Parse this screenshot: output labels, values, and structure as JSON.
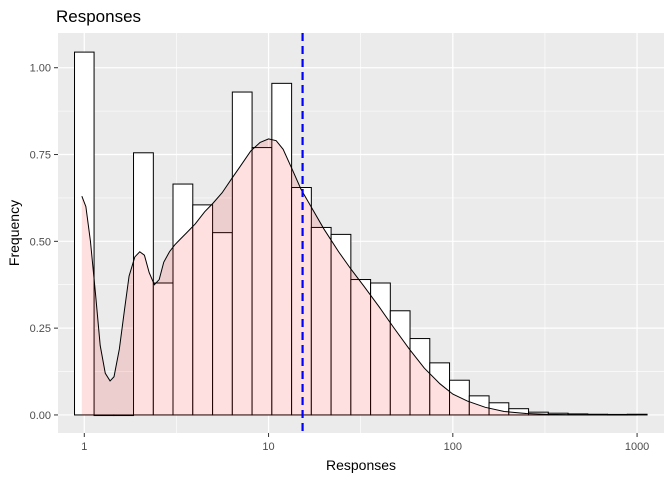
{
  "chart_data": {
    "type": "bar",
    "title": "Responses",
    "xlabel": "Responses",
    "ylabel": "Frequency",
    "x_scale": "log10",
    "xlim": [
      0.72,
      1400
    ],
    "ylim": [
      -0.052,
      1.1
    ],
    "x_ticks": [
      1,
      10,
      100,
      1000
    ],
    "x_tick_labels": [
      "1",
      "10",
      "100",
      "1000"
    ],
    "y_ticks": [
      0,
      0.25,
      0.5,
      0.75,
      1.0
    ],
    "y_tick_labels": [
      "0.00",
      "0.25",
      "0.50",
      "0.75",
      "1.00"
    ],
    "grid": true,
    "legend": "none",
    "histogram": {
      "bin_edges": [
        0.885,
        1.13,
        1.446,
        1.85,
        2.37,
        3.03,
        3.88,
        4.97,
        6.36,
        8.14,
        10.42,
        13.34,
        17.07,
        21.85,
        27.97,
        35.8,
        45.8,
        58.6,
        75.0,
        96.0,
        122.9,
        157.3,
        201.3,
        257.7,
        329.8,
        422.2,
        540.4,
        691.7,
        885.3,
        1133.2
      ],
      "values": [
        1.045,
        0.0,
        0.0,
        0.755,
        0.38,
        0.665,
        0.605,
        0.525,
        0.93,
        0.77,
        0.955,
        0.655,
        0.54,
        0.52,
        0.39,
        0.38,
        0.3,
        0.22,
        0.15,
        0.1,
        0.055,
        0.035,
        0.018,
        0.008,
        0.005,
        0.003,
        0.002,
        0.0015,
        0.002
      ],
      "fill": "#ffffff",
      "stroke": "#000000"
    },
    "density": {
      "x": [
        0.97,
        1.02,
        1.08,
        1.15,
        1.22,
        1.3,
        1.38,
        1.45,
        1.55,
        1.65,
        1.75,
        1.88,
        2.0,
        2.12,
        2.25,
        2.4,
        2.55,
        2.7,
        2.9,
        3.1,
        3.3,
        3.6,
        4.0,
        4.5,
        5.0,
        5.6,
        6.3,
        7.0,
        8.0,
        9.0,
        10.0,
        11.0,
        12.0,
        13.5,
        15.0,
        17.0,
        20.0,
        24.0,
        28.0,
        33.0,
        40.0,
        48.0,
        58.0,
        70.0,
        85.0,
        100.0,
        120.0,
        150.0,
        190.0,
        250.0,
        330.0,
        450.0,
        650.0,
        1000.0
      ],
      "y": [
        0.63,
        0.6,
        0.5,
        0.35,
        0.2,
        0.12,
        0.098,
        0.11,
        0.19,
        0.3,
        0.4,
        0.455,
        0.47,
        0.46,
        0.41,
        0.375,
        0.39,
        0.44,
        0.47,
        0.49,
        0.505,
        0.525,
        0.55,
        0.585,
        0.61,
        0.64,
        0.68,
        0.715,
        0.76,
        0.785,
        0.795,
        0.79,
        0.765,
        0.705,
        0.65,
        0.6,
        0.535,
        0.47,
        0.42,
        0.37,
        0.31,
        0.25,
        0.19,
        0.135,
        0.09,
        0.06,
        0.04,
        0.022,
        0.01,
        0.004,
        0.0015,
        0.0005,
        0.0002,
        0.0
      ],
      "fill": "#ff0000",
      "fill_opacity": 0.12,
      "stroke": "#000000"
    },
    "reference_line": {
      "x": 15.3,
      "color": "#0000ff",
      "style": "dashed"
    },
    "panel_background": "#ebebeb",
    "grid_color": "#ffffff"
  }
}
